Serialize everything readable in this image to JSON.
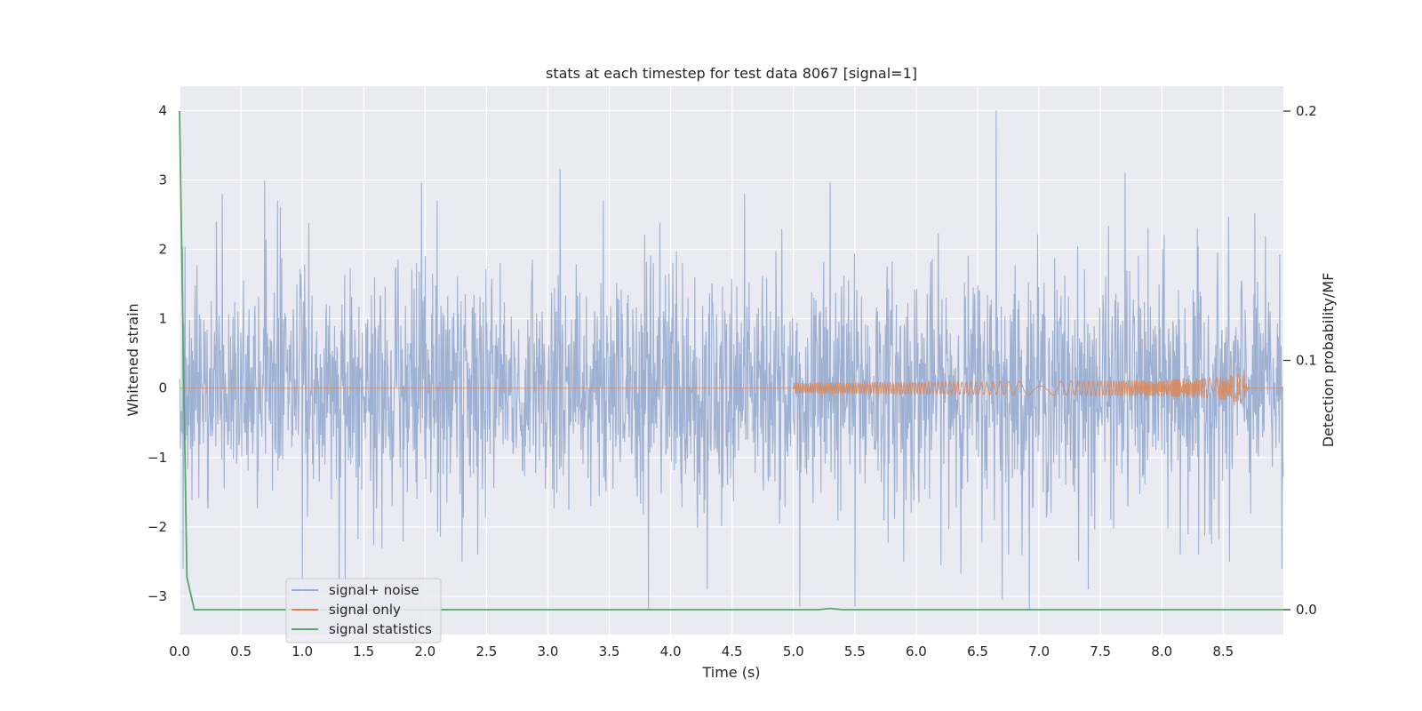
{
  "chart_data": {
    "type": "line",
    "title": "stats at each timestep for test data 8067 [signal=1]",
    "xlabel": "Time (s)",
    "ylabel": "Whitened strain",
    "y2label": "Detection probability/MF",
    "xlim": [
      0,
      8.99
    ],
    "ylim": [
      -3.55,
      4.35
    ],
    "y2lim": [
      -0.01,
      0.21
    ],
    "xticks": [
      "0.0",
      "0.5",
      "1.0",
      "1.5",
      "2.0",
      "2.5",
      "3.0",
      "3.5",
      "4.0",
      "4.5",
      "5.0",
      "5.5",
      "6.0",
      "6.5",
      "7.0",
      "7.5",
      "8.0",
      "8.5"
    ],
    "yticks": [
      "4",
      "3",
      "2",
      "1",
      "0",
      "−1",
      "−2",
      "−3"
    ],
    "y2ticks": [
      "0.2",
      "0.1",
      "0.0"
    ],
    "grid": true,
    "legend_position": "lower-left",
    "colors": {
      "background": "#eaeaf2",
      "grid": "#ffffff",
      "noise": "#9aaed1",
      "signal": "#dd8452",
      "stats": "#55a868"
    },
    "series": [
      {
        "name": "signal+ noise",
        "axis": "left",
        "description_values": "noisy whitened strain fluctuating roughly between -3.2 and 4.0",
        "peaks": [
          [
            0.03,
            -2.6
          ],
          [
            0.3,
            2.4
          ],
          [
            0.35,
            2.8
          ],
          [
            0.8,
            2.7
          ],
          [
            1.0,
            -2.8
          ],
          [
            1.3,
            -2.8
          ],
          [
            1.35,
            -2.8
          ],
          [
            1.97,
            2.96
          ],
          [
            2.1,
            2.7
          ],
          [
            2.3,
            -2.5
          ],
          [
            3.1,
            3.15
          ],
          [
            3.45,
            2.7
          ],
          [
            3.82,
            -3.2
          ],
          [
            4.3,
            -2.9
          ],
          [
            4.6,
            2.8
          ],
          [
            5.05,
            -3.15
          ],
          [
            5.3,
            2.96
          ],
          [
            5.5,
            3.15
          ],
          [
            5.5,
            -3.15
          ],
          [
            5.9,
            -2.5
          ],
          [
            6.65,
            4.0
          ],
          [
            6.7,
            -3.05
          ],
          [
            7.4,
            -2.9
          ],
          [
            7.7,
            3.1
          ],
          [
            8.15,
            -2.4
          ],
          [
            8.3,
            -2.4
          ],
          [
            8.55,
            -2.5
          ],
          [
            8.98,
            -2.6
          ]
        ]
      },
      {
        "name": "signal only",
        "axis": "left",
        "chirp_start": 5.0,
        "chirp_peak_time": 8.67,
        "chirp_peak_amplitude": 0.3
      },
      {
        "name": "signal statistics",
        "axis": "right",
        "x": [
          0.0,
          0.06,
          0.12,
          5.2,
          5.3,
          5.4,
          8.99
        ],
        "y": [
          0.2,
          0.013,
          0.0,
          0.0,
          0.0005,
          0.0,
          0.0
        ]
      }
    ]
  }
}
